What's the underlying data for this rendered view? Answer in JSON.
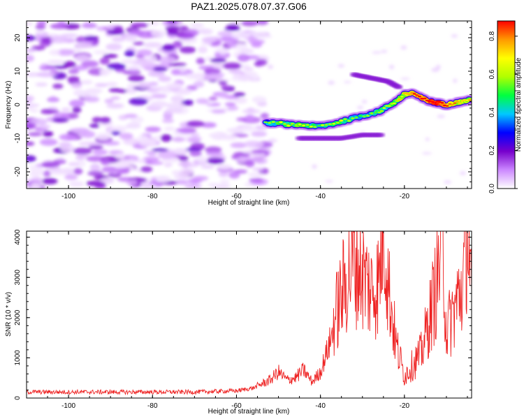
{
  "title": "PAZ1.2025.078.07.37.G06",
  "chart_data": [
    {
      "type": "heatmap",
      "xlabel": "Height of straight line (km)",
      "ylabel": "Frequency (Hz)",
      "xlim": [
        -110,
        -4
      ],
      "ylim": [
        -25,
        25
      ],
      "xticks": [
        -100,
        -80,
        -60,
        -40,
        -20
      ],
      "xtick_labels": [
        "-100",
        "-80",
        "-60",
        "-40",
        "-20"
      ],
      "yticks": [
        -20,
        -10,
        0,
        10,
        20
      ],
      "ytick_labels": [
        "-20",
        "-10",
        "0",
        "10",
        "20"
      ],
      "colorbar": {
        "label": "Normalized spectral amplitude",
        "range": [
          0.0,
          0.88
        ],
        "ticks": [
          0.0,
          0.2,
          0.4,
          0.6,
          0.8
        ],
        "tick_labels": [
          "0.0",
          "0.2",
          "0.4",
          "0.6",
          "0.8"
        ],
        "colors": [
          "#ffffff",
          "#cc88ff",
          "#7700cc",
          "#0000ff",
          "#00c8ff",
          "#00ff40",
          "#b0ff00",
          "#ffff00",
          "#ff9900",
          "#ff0000"
        ]
      },
      "noise_region_x": [
        -110,
        -53
      ],
      "ridge": {
        "name": "",
        "x": [
          -53,
          -50,
          -47,
          -44,
          -41,
          -38,
          -35,
          -32,
          -29,
          -26,
          -24,
          -22,
          -20,
          -18,
          -16,
          -14,
          -12,
          -10,
          -8,
          -6,
          -4
        ],
        "y": [
          -5.5,
          -5.5,
          -6,
          -6,
          -6.5,
          -6,
          -5,
          -4,
          -3,
          -2,
          -0.5,
          1,
          3,
          3.5,
          2,
          1,
          0.5,
          0,
          0.5,
          1,
          1.5
        ],
        "amplitude": [
          0.35,
          0.45,
          0.5,
          0.45,
          0.45,
          0.4,
          0.5,
          0.45,
          0.4,
          0.45,
          0.4,
          0.5,
          0.6,
          0.7,
          0.75,
          0.8,
          0.85,
          0.7,
          0.65,
          0.6,
          0.55
        ]
      },
      "branches": [
        {
          "x": [
            -45,
            -40,
            -35,
            -30,
            -25
          ],
          "y": [
            -10,
            -10,
            -10,
            -9,
            -9
          ]
        },
        {
          "x": [
            -32,
            -28,
            -24,
            -21
          ],
          "y": [
            9,
            8,
            7,
            5
          ]
        }
      ]
    },
    {
      "type": "line",
      "xlabel": "Height of straight line (km)",
      "ylabel": "SNR (10 * v/v)",
      "xlim": [
        -110,
        -4
      ],
      "ylim": [
        0,
        4150
      ],
      "xticks": [
        -100,
        -80,
        -60,
        -40,
        -20
      ],
      "xtick_labels": [
        "-100",
        "-80",
        "-60",
        "-40",
        "-20"
      ],
      "yticks": [
        0,
        1000,
        2000,
        3000,
        4000
      ],
      "ytick_labels": [
        "0",
        "1000",
        "2000",
        "3000",
        "4000"
      ],
      "series": [
        {
          "name": "",
          "color": "#ee2222",
          "x": [
            -110,
            -100,
            -90,
            -80,
            -70,
            -60,
            -56,
            -52,
            -50,
            -48,
            -46,
            -44,
            -42,
            -40,
            -38,
            -36,
            -34,
            -32,
            -30,
            -28,
            -26,
            -25,
            -24,
            -22,
            -20,
            -18,
            -16,
            -14,
            -12,
            -11,
            -10,
            -8,
            -6,
            -5,
            -4
          ],
          "y": [
            150,
            150,
            150,
            150,
            150,
            180,
            250,
            450,
            650,
            450,
            500,
            700,
            400,
            650,
            1300,
            2000,
            2600,
            3100,
            2800,
            2400,
            2600,
            4100,
            2700,
            1200,
            500,
            750,
            1000,
            1800,
            2700,
            3800,
            1500,
            2000,
            2600,
            3950,
            2100
          ]
        }
      ]
    }
  ]
}
